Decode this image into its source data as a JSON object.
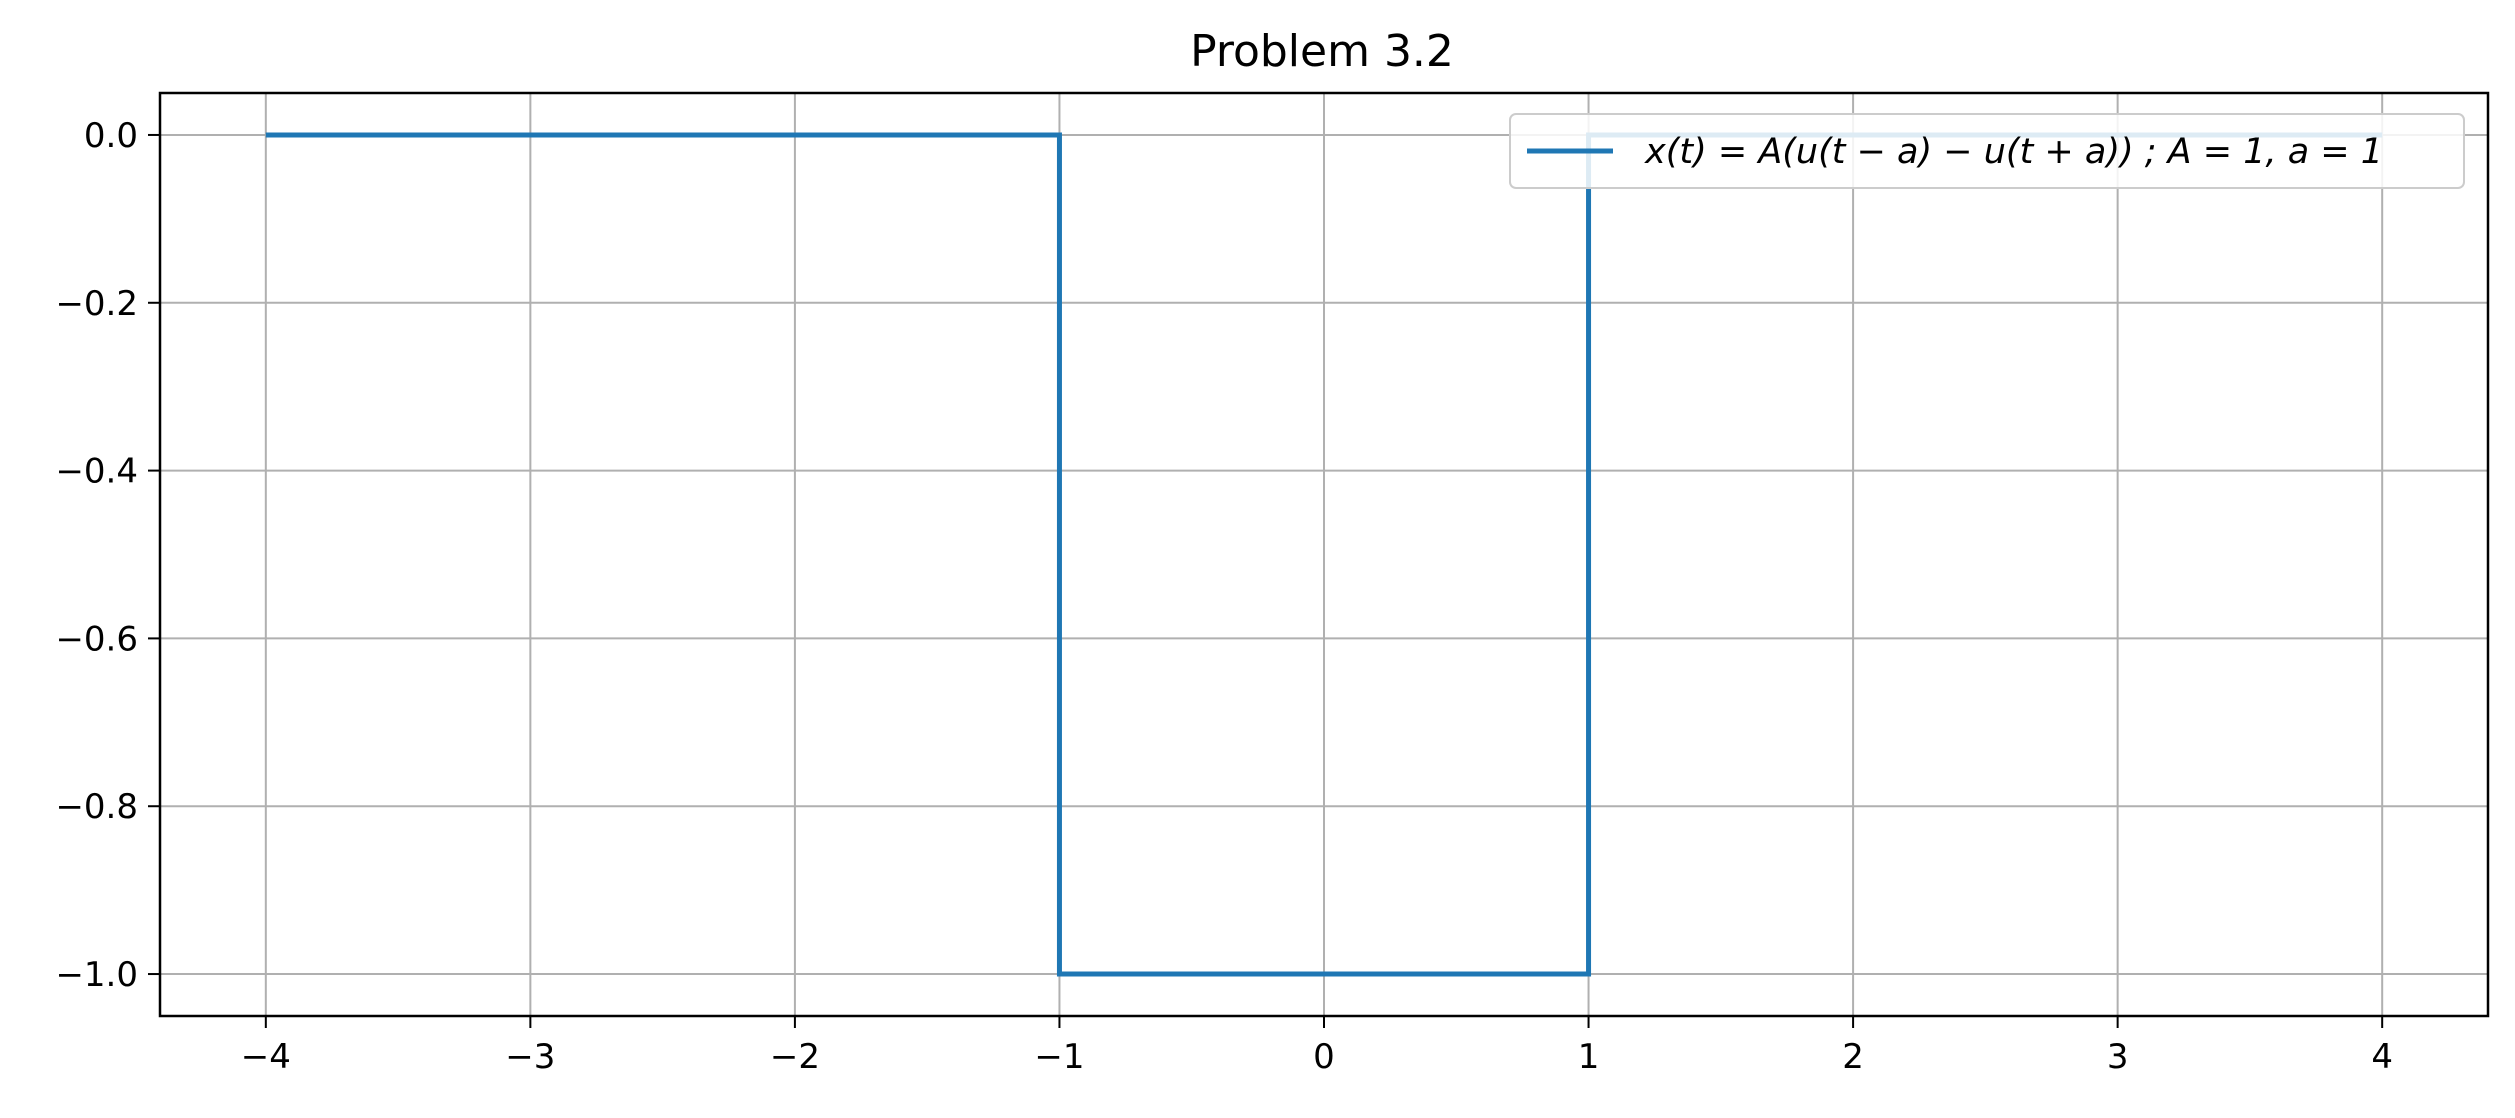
{
  "chart_data": {
    "type": "line",
    "title": "Problem 3.2",
    "xlabel": "",
    "ylabel": "",
    "xlim": [
      -4.4,
      4.4
    ],
    "ylim": [
      -1.05,
      0.05
    ],
    "x_ticks": [
      -4,
      -3,
      -2,
      -1,
      0,
      1,
      2,
      3,
      4
    ],
    "x_tick_labels": [
      "−4",
      "−3",
      "−2",
      "−1",
      "0",
      "1",
      "2",
      "3",
      "4"
    ],
    "y_ticks": [
      0.0,
      -0.2,
      -0.4,
      -0.6,
      -0.8,
      -1.0
    ],
    "y_tick_labels": [
      "0.0",
      "−0.2",
      "−0.4",
      "−0.6",
      "−0.8",
      "−1.0"
    ],
    "grid": true,
    "legend_position": "upper right",
    "series": [
      {
        "name": "x(t) = A(u(t − a) − u(t + a)) ; A = 1, a = 1",
        "color": "#1f77b4",
        "x": [
          -4,
          -1,
          -1,
          1,
          1,
          4
        ],
        "y": [
          0,
          0,
          -1,
          -1,
          0,
          0
        ]
      }
    ]
  }
}
